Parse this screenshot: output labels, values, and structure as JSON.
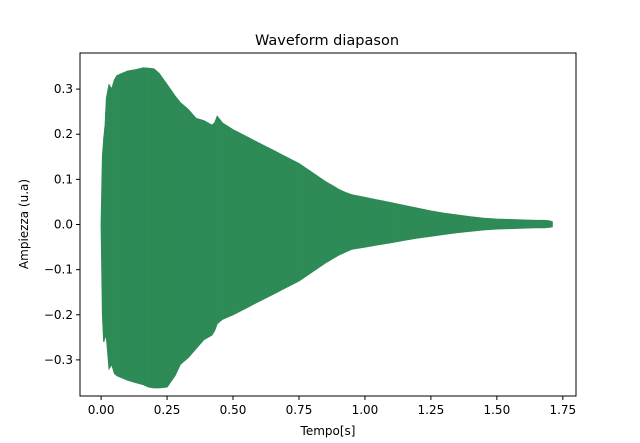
{
  "chart_data": {
    "type": "area",
    "title": "Waveform diapason",
    "xlabel": "Tempo[s]",
    "ylabel": "Ampiezza (u.a)",
    "xlim": [
      -0.08,
      1.8
    ],
    "ylim": [
      -0.38,
      0.38
    ],
    "x_ticks": [
      0.0,
      0.25,
      0.5,
      0.75,
      1.0,
      1.25,
      1.5,
      1.75
    ],
    "x_tick_labels": [
      "0.00",
      "0.25",
      "0.50",
      "0.75",
      "1.00",
      "1.25",
      "1.50",
      "1.75"
    ],
    "y_ticks": [
      0.3,
      0.2,
      0.1,
      0.0,
      -0.1,
      -0.2,
      -0.3
    ],
    "y_tick_labels": [
      "0.3",
      "0.2",
      "0.1",
      "0.0",
      "−0.1",
      "−0.2",
      "−0.3"
    ],
    "grid": false,
    "series": [
      {
        "color": "#2e8b57",
        "upper_envelope": {
          "x": [
            0.0,
            0.005,
            0.01,
            0.015,
            0.02,
            0.03,
            0.04,
            0.05,
            0.06,
            0.08,
            0.1,
            0.13,
            0.16,
            0.18,
            0.2,
            0.22,
            0.25,
            0.28,
            0.3,
            0.33,
            0.36,
            0.39,
            0.42,
            0.43,
            0.44,
            0.46,
            0.5,
            0.55,
            0.6,
            0.65,
            0.7,
            0.75,
            0.8,
            0.85,
            0.88,
            0.9,
            0.93,
            0.95,
            1.0,
            1.05,
            1.1,
            1.15,
            1.2,
            1.25,
            1.3,
            1.35,
            1.4,
            1.45,
            1.5,
            1.55,
            1.6,
            1.65,
            1.68,
            1.7,
            1.71
          ],
          "y": [
            0.0,
            0.15,
            0.19,
            0.22,
            0.28,
            0.31,
            0.3,
            0.32,
            0.33,
            0.335,
            0.34,
            0.343,
            0.347,
            0.346,
            0.345,
            0.335,
            0.31,
            0.285,
            0.27,
            0.255,
            0.235,
            0.23,
            0.22,
            0.225,
            0.24,
            0.225,
            0.21,
            0.195,
            0.18,
            0.165,
            0.15,
            0.135,
            0.115,
            0.095,
            0.085,
            0.078,
            0.07,
            0.066,
            0.06,
            0.054,
            0.048,
            0.042,
            0.036,
            0.03,
            0.025,
            0.021,
            0.017,
            0.014,
            0.012,
            0.011,
            0.01,
            0.009,
            0.009,
            0.008,
            0.006
          ]
        },
        "lower_envelope": {
          "x": [
            0.0,
            0.005,
            0.01,
            0.015,
            0.02,
            0.03,
            0.04,
            0.05,
            0.06,
            0.08,
            0.1,
            0.13,
            0.16,
            0.18,
            0.2,
            0.22,
            0.25,
            0.28,
            0.3,
            0.33,
            0.36,
            0.39,
            0.42,
            0.43,
            0.44,
            0.46,
            0.5,
            0.55,
            0.6,
            0.65,
            0.7,
            0.75,
            0.8,
            0.85,
            0.88,
            0.9,
            0.93,
            0.95,
            1.0,
            1.05,
            1.1,
            1.15,
            1.2,
            1.25,
            1.3,
            1.35,
            1.4,
            1.45,
            1.5,
            1.55,
            1.6,
            1.65,
            1.68,
            1.7,
            1.71
          ],
          "y": [
            0.0,
            -0.2,
            -0.26,
            -0.25,
            -0.25,
            -0.32,
            -0.31,
            -0.33,
            -0.335,
            -0.34,
            -0.345,
            -0.35,
            -0.355,
            -0.36,
            -0.362,
            -0.362,
            -0.36,
            -0.335,
            -0.31,
            -0.295,
            -0.275,
            -0.255,
            -0.245,
            -0.235,
            -0.22,
            -0.21,
            -0.2,
            -0.185,
            -0.17,
            -0.155,
            -0.14,
            -0.125,
            -0.105,
            -0.085,
            -0.075,
            -0.068,
            -0.06,
            -0.055,
            -0.05,
            -0.045,
            -0.04,
            -0.035,
            -0.03,
            -0.026,
            -0.022,
            -0.018,
            -0.015,
            -0.012,
            -0.01,
            -0.009,
            -0.008,
            -0.007,
            -0.007,
            -0.006,
            -0.005
          ]
        }
      }
    ]
  }
}
